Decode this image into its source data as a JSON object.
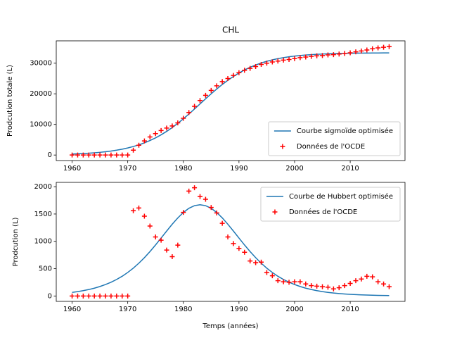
{
  "chart_data": [
    {
      "type": "line",
      "title": "CHL",
      "y_label": "Prodcution totale (L)",
      "legend": "lower right",
      "x": [
        1960,
        1961,
        1962,
        1963,
        1964,
        1965,
        1966,
        1967,
        1968,
        1969,
        1970,
        1971,
        1972,
        1973,
        1974,
        1975,
        1976,
        1977,
        1978,
        1979,
        1980,
        1981,
        1982,
        1983,
        1984,
        1985,
        1986,
        1987,
        1988,
        1989,
        1990,
        1991,
        1992,
        1993,
        1994,
        1995,
        1996,
        1997,
        1998,
        1999,
        2000,
        2001,
        2002,
        2003,
        2004,
        2005,
        2006,
        2007,
        2008,
        2009,
        2010,
        2011,
        2012,
        2013,
        2014,
        2015,
        2016,
        2017
      ],
      "xlim": [
        1957.15,
        2019.85
      ],
      "xticks": [
        1960,
        1970,
        1980,
        1990,
        2000,
        2010
      ],
      "ylim": [
        -1800,
        37300
      ],
      "yticks": [
        0,
        10000,
        20000,
        30000
      ],
      "series": [
        {
          "name": "Courbe sigmoïde optimisée",
          "color": "#1f77b4",
          "style": "line",
          "values": [
            332,
            405,
            493,
            600,
            731,
            889,
            1079,
            1308,
            1584,
            1915,
            2310,
            2779,
            3331,
            3981,
            4738,
            5611,
            6607,
            7731,
            8983,
            10353,
            11835,
            13403,
            15037,
            16700,
            18363,
            19997,
            21565,
            23047,
            24417,
            25669,
            26793,
            27789,
            28662,
            29419,
            30068,
            30622,
            31090,
            31486,
            31815,
            32091,
            32320,
            32512,
            32668,
            32800,
            32906,
            32994,
            33066,
            33128,
            33178,
            33217,
            33250,
            33277,
            33300,
            33317,
            33333,
            33343,
            33353,
            33363
          ]
        },
        {
          "name": "Données de l'OCDE",
          "color": "#ff0000",
          "style": "scatter",
          "values": [
            0,
            0,
            0,
            0,
            0,
            0,
            0,
            0,
            0,
            0,
            0,
            1600,
            3200,
            4600,
            5900,
            7000,
            8000,
            8800,
            9500,
            10500,
            12000,
            13900,
            15900,
            17800,
            19500,
            21100,
            22600,
            24000,
            25000,
            26000,
            26900,
            27700,
            28300,
            28900,
            29600,
            30000,
            30400,
            30700,
            31000,
            31200,
            31500,
            31800,
            32000,
            32200,
            32400,
            32500,
            32700,
            32800,
            33000,
            33200,
            33400,
            33700,
            34000,
            34300,
            34700,
            35000,
            35200,
            35400
          ]
        }
      ]
    },
    {
      "type": "line",
      "x_label": "Temps (années)",
      "y_label": "Prodcution (L)",
      "legend": "upper right",
      "x": [
        1960,
        1961,
        1962,
        1963,
        1964,
        1965,
        1966,
        1967,
        1968,
        1969,
        1970,
        1971,
        1972,
        1973,
        1974,
        1975,
        1976,
        1977,
        1978,
        1979,
        1980,
        1981,
        1982,
        1983,
        1984,
        1985,
        1986,
        1987,
        1988,
        1989,
        1990,
        1991,
        1992,
        1993,
        1994,
        1995,
        1996,
        1997,
        1998,
        1999,
        2000,
        2001,
        2002,
        2003,
        2004,
        2005,
        2006,
        2007,
        2008,
        2009,
        2010,
        2011,
        2012,
        2013,
        2014,
        2015,
        2016,
        2017
      ],
      "xlim": [
        1957.15,
        2019.85
      ],
      "xticks": [
        1960,
        1970,
        1980,
        1990,
        2000,
        2010
      ],
      "ylim": [
        -99,
        2079
      ],
      "yticks": [
        0,
        500,
        1000,
        1500,
        2000
      ],
      "series": [
        {
          "name": "Courbe de Hubbert optimisée",
          "color": "#1f77b4",
          "style": "line",
          "values": [
            66,
            80,
            97,
            118,
            143,
            173,
            209,
            251,
            302,
            361,
            430,
            509,
            600,
            701,
            813,
            934,
            1060,
            1188,
            1314,
            1428,
            1528,
            1605,
            1653,
            1670,
            1653,
            1605,
            1528,
            1429,
            1313,
            1188,
            1060,
            933,
            813,
            702,
            600,
            509,
            430,
            361,
            302,
            252,
            209,
            173,
            143,
            118,
            97,
            80,
            66,
            54,
            44,
            36,
            30,
            25,
            20,
            17,
            13,
            11,
            9,
            7
          ]
        },
        {
          "name": "Données de l'OCDE",
          "color": "#ff0000",
          "style": "scatter",
          "values": [
            0,
            0,
            0,
            0,
            0,
            0,
            0,
            0,
            0,
            0,
            0,
            1560,
            1610,
            1460,
            1280,
            1080,
            1020,
            840,
            720,
            930,
            1530,
            1920,
            1980,
            1820,
            1770,
            1620,
            1520,
            1330,
            1080,
            960,
            870,
            800,
            640,
            610,
            620,
            430,
            370,
            280,
            260,
            250,
            260,
            260,
            220,
            190,
            180,
            170,
            160,
            130,
            150,
            190,
            230,
            280,
            310,
            360,
            350,
            260,
            220,
            170
          ]
        }
      ]
    }
  ]
}
